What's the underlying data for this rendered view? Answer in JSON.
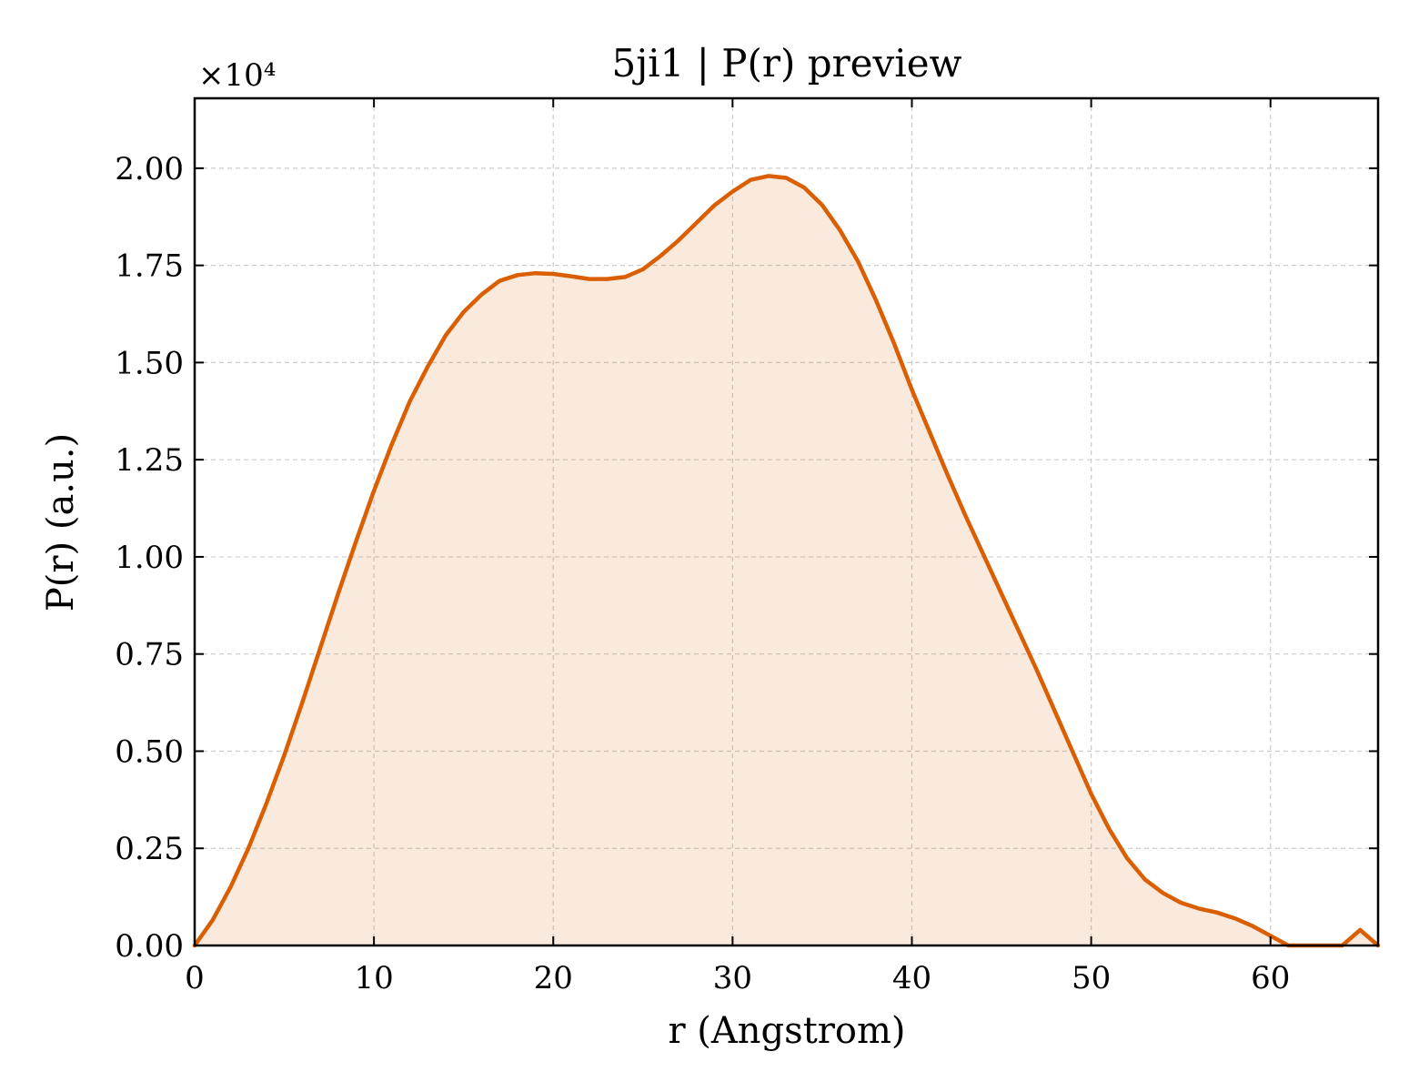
{
  "chart_data": {
    "type": "area",
    "title": "5ji1 | P(r) preview",
    "xlabel": "r (Angstrom)",
    "ylabel": "P(r) (a.u.)",
    "y_multiplier_label": "×10⁴",
    "xlim": [
      0,
      66
    ],
    "ylim": [
      0,
      2.18
    ],
    "x_ticks": [
      0,
      10,
      20,
      30,
      40,
      50,
      60
    ],
    "x_tick_labels": [
      "0",
      "10",
      "20",
      "30",
      "40",
      "50",
      "60"
    ],
    "y_ticks": [
      0,
      0.25,
      0.5,
      0.75,
      1.0,
      1.25,
      1.5,
      1.75,
      2.0
    ],
    "y_tick_labels": [
      "0.00",
      "0.25",
      "0.50",
      "0.75",
      "1.00",
      "1.25",
      "1.50",
      "1.75",
      "2.00"
    ],
    "grid": true,
    "legend": "none",
    "colors": {
      "line": "#d95f02",
      "fill": "#d95f02"
    },
    "series": [
      {
        "x": [
          0,
          1,
          2,
          3,
          4,
          5,
          6,
          7,
          8,
          9,
          10,
          11,
          12,
          13,
          14,
          15,
          16,
          17,
          18,
          19,
          20,
          21,
          22,
          23,
          24,
          25,
          26,
          27,
          28,
          29,
          30,
          31,
          32,
          33,
          34,
          35,
          36,
          37,
          38,
          39,
          40,
          41,
          42,
          43,
          44,
          45,
          46,
          47,
          48,
          49,
          50,
          51,
          52,
          53,
          54,
          55,
          56,
          57,
          58,
          59,
          60,
          61,
          62,
          63,
          64,
          65,
          66
        ],
        "y": [
          0.0,
          0.065,
          0.15,
          0.25,
          0.365,
          0.49,
          0.625,
          0.765,
          0.905,
          1.04,
          1.17,
          1.29,
          1.4,
          1.49,
          1.57,
          1.63,
          1.675,
          1.71,
          1.725,
          1.73,
          1.728,
          1.722,
          1.715,
          1.715,
          1.72,
          1.74,
          1.775,
          1.815,
          1.86,
          1.905,
          1.94,
          1.97,
          1.98,
          1.975,
          1.95,
          1.905,
          1.84,
          1.76,
          1.66,
          1.55,
          1.43,
          1.32,
          1.21,
          1.105,
          1.005,
          0.905,
          0.805,
          0.705,
          0.6,
          0.495,
          0.39,
          0.3,
          0.225,
          0.17,
          0.135,
          0.11,
          0.095,
          0.085,
          0.07,
          0.05,
          0.025,
          0.0,
          0.0,
          0.0,
          0.0,
          0.04,
          0.0
        ]
      }
    ]
  }
}
